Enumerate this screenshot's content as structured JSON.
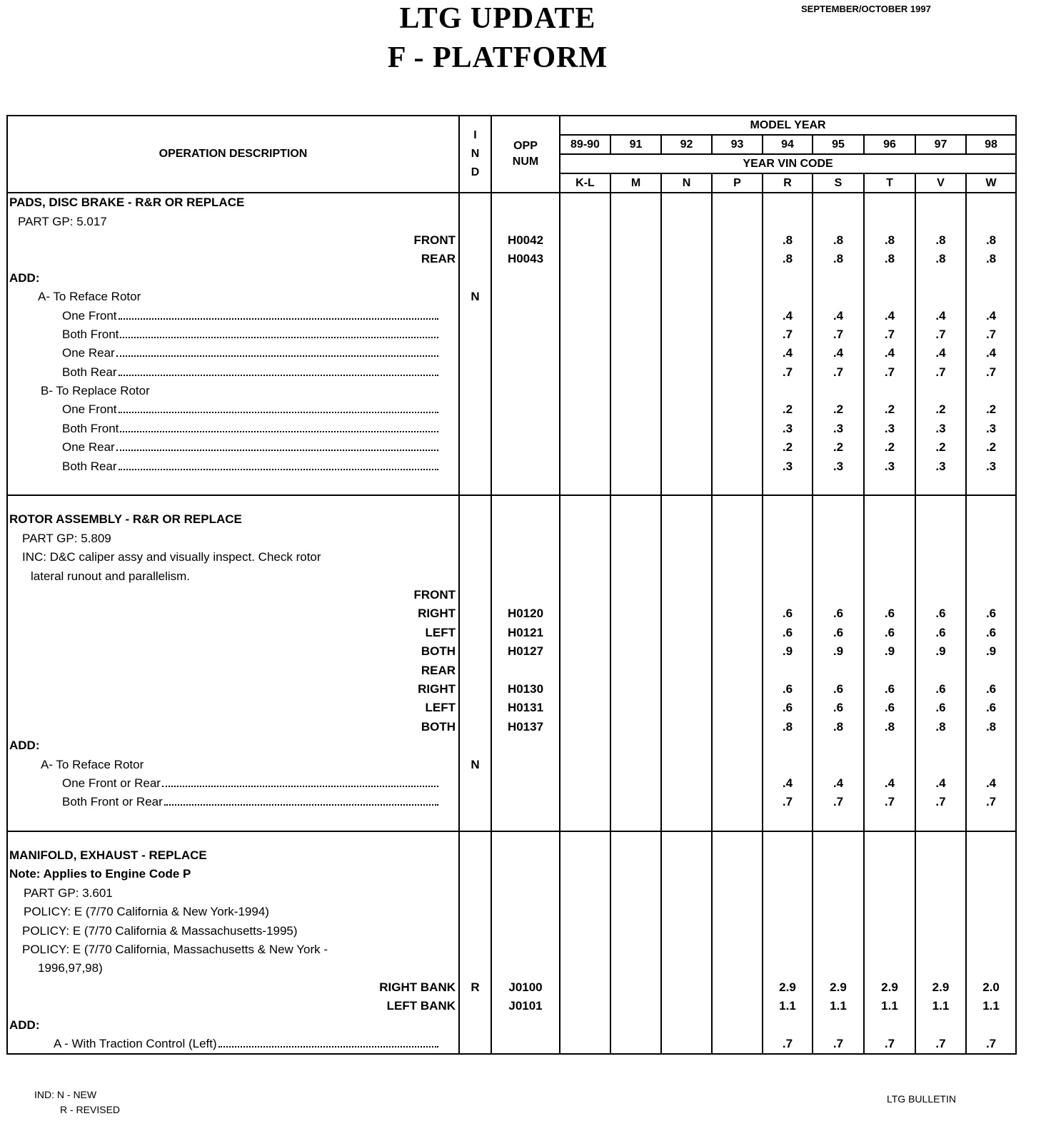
{
  "header": {
    "title_line1": "LTG UPDATE",
    "title_line2": "F - PLATFORM",
    "date": "SEPTEMBER/OCTOBER 1997"
  },
  "table": {
    "col_desc": "OPERATION  DESCRIPTION",
    "col_ind": [
      "I",
      "N",
      "D"
    ],
    "col_opp": [
      "OPP",
      "NUM"
    ],
    "model_year_label": "MODEL  YEAR",
    "years": [
      "89-90",
      "91",
      "92",
      "93",
      "94",
      "95",
      "96",
      "97",
      "98"
    ],
    "vin_label": "YEAR  VIN  CODE",
    "vin_codes": [
      "K-L",
      "M",
      "N",
      "P",
      "R",
      "S",
      "T",
      "V",
      "W"
    ]
  },
  "sections": [
    {
      "rows": [
        {
          "text": "PADS, DISC BRAKE - R&R OR REPLACE",
          "style": "bold",
          "indent": 0
        },
        {
          "text": "PART GP: 5.017",
          "indent": 12
        },
        {
          "text": "FRONT",
          "style": "right",
          "opp": "H0042",
          "values": [
            "",
            "",
            "",
            "",
            ".8",
            ".8",
            ".8",
            ".8",
            ".8"
          ]
        },
        {
          "text": "REAR",
          "style": "right",
          "opp": "H0043",
          "values": [
            "",
            "",
            "",
            "",
            ".8",
            ".8",
            ".8",
            ".8",
            ".8"
          ]
        },
        {
          "text": "ADD:",
          "style": "bold",
          "indent": 0
        },
        {
          "text": "A- To Reface Rotor",
          "indent": 40,
          "ind": "N"
        },
        {
          "text": "One Front",
          "indent": 74,
          "leader": true,
          "values": [
            "",
            "",
            "",
            "",
            ".4",
            ".4",
            ".4",
            ".4",
            ".4"
          ]
        },
        {
          "text": "Both Front",
          "indent": 74,
          "leader": true,
          "values": [
            "",
            "",
            "",
            "",
            ".7",
            ".7",
            ".7",
            ".7",
            ".7"
          ]
        },
        {
          "text": "One Rear",
          "indent": 74,
          "leader": true,
          "values": [
            "",
            "",
            "",
            "",
            ".4",
            ".4",
            ".4",
            ".4",
            ".4"
          ]
        },
        {
          "text": "Both Rear",
          "indent": 74,
          "leader": true,
          "values": [
            "",
            "",
            "",
            "",
            ".7",
            ".7",
            ".7",
            ".7",
            ".7"
          ]
        },
        {
          "text": "B- To Replace Rotor",
          "indent": 44
        },
        {
          "text": "One Front",
          "indent": 74,
          "leader": true,
          "values": [
            "",
            "",
            "",
            "",
            ".2",
            ".2",
            ".2",
            ".2",
            ".2"
          ]
        },
        {
          "text": "Both Front",
          "indent": 74,
          "leader": true,
          "values": [
            "",
            "",
            "",
            "",
            ".3",
            ".3",
            ".3",
            ".3",
            ".3"
          ]
        },
        {
          "text": "One Rear",
          "indent": 74,
          "leader": true,
          "values": [
            "",
            "",
            "",
            "",
            ".2",
            ".2",
            ".2",
            ".2",
            ".2"
          ]
        },
        {
          "text": "Both Rear",
          "indent": 74,
          "leader": true,
          "values": [
            "",
            "",
            "",
            "",
            ".3",
            ".3",
            ".3",
            ".3",
            ".3"
          ]
        },
        {
          "text": ""
        }
      ]
    },
    {
      "rows": [
        {
          "text": "ROTOR ASSEMBLY - R&R OR REPLACE",
          "style": "bold",
          "indent": 0
        },
        {
          "text": "PART GP: 5.809",
          "indent": 18
        },
        {
          "text": "INC: D&C caliper assy and visually inspect. Check rotor",
          "indent": 18
        },
        {
          "text": "lateral runout and parallelism.",
          "indent": 30
        },
        {
          "text": "FRONT",
          "style": "right"
        },
        {
          "text": "RIGHT",
          "style": "right",
          "opp": "H0120",
          "values": [
            "",
            "",
            "",
            "",
            ".6",
            ".6",
            ".6",
            ".6",
            ".6"
          ]
        },
        {
          "text": "LEFT",
          "style": "right",
          "opp": "H0121",
          "values": [
            "",
            "",
            "",
            "",
            ".6",
            ".6",
            ".6",
            ".6",
            ".6"
          ]
        },
        {
          "text": "BOTH",
          "style": "right",
          "opp": "H0127",
          "values": [
            "",
            "",
            "",
            "",
            ".9",
            ".9",
            ".9",
            ".9",
            ".9"
          ]
        },
        {
          "text": "REAR",
          "style": "right"
        },
        {
          "text": "RIGHT",
          "style": "right",
          "opp": "H0130",
          "values": [
            "",
            "",
            "",
            "",
            ".6",
            ".6",
            ".6",
            ".6",
            ".6"
          ]
        },
        {
          "text": "LEFT",
          "style": "right",
          "opp": "H0131",
          "values": [
            "",
            "",
            "",
            "",
            ".6",
            ".6",
            ".6",
            ".6",
            ".6"
          ]
        },
        {
          "text": "BOTH",
          "style": "right",
          "opp": "H0137",
          "values": [
            "",
            "",
            "",
            "",
            ".8",
            ".8",
            ".8",
            ".8",
            ".8"
          ]
        },
        {
          "text": "ADD:",
          "style": "bold",
          "indent": 0
        },
        {
          "text": "A- To Reface Rotor",
          "indent": 44,
          "ind": "N"
        },
        {
          "text": "One Front or Rear",
          "indent": 74,
          "leader": true,
          "values": [
            "",
            "",
            "",
            "",
            ".4",
            ".4",
            ".4",
            ".4",
            ".4"
          ]
        },
        {
          "text": "Both Front or Rear",
          "indent": 74,
          "leader": true,
          "values": [
            "",
            "",
            "",
            "",
            ".7",
            ".7",
            ".7",
            ".7",
            ".7"
          ]
        },
        {
          "text": ""
        }
      ]
    },
    {
      "rows": [
        {
          "text": "MANIFOLD, EXHAUST - REPLACE",
          "style": "bold",
          "indent": 0
        },
        {
          "text": "Note:  Applies to Engine Code P",
          "style": "bold",
          "indent": 0
        },
        {
          "text": "PART GP: 3.601",
          "indent": 20
        },
        {
          "text": "POLICY: E (7/70 California & New York-1994)",
          "indent": 20
        },
        {
          "text": "POLICY: E (7/70 California & Massachusetts-1995)",
          "indent": 18
        },
        {
          "text": "POLICY: E (7/70 California, Massachusetts & New York -",
          "indent": 18
        },
        {
          "text": "1996,97,98)",
          "indent": 40
        },
        {
          "text": "RIGHT BANK",
          "style": "right",
          "ind": "R",
          "opp": "J0100",
          "values": [
            "",
            "",
            "",
            "",
            "2.9",
            "2.9",
            "2.9",
            "2.9",
            "2.0"
          ]
        },
        {
          "text": "LEFT BANK",
          "style": "right",
          "opp": "J0101",
          "values": [
            "",
            "",
            "",
            "",
            "1.1",
            "1.1",
            "1.1",
            "1.1",
            "1.1"
          ]
        },
        {
          "text": "ADD:",
          "style": "bold",
          "indent": 0
        },
        {
          "text": "A - With Traction Control (Left)",
          "indent": 62,
          "leader": true,
          "values": [
            "",
            "",
            "",
            "",
            ".7",
            ".7",
            ".7",
            ".7",
            ".7"
          ]
        }
      ]
    }
  ],
  "footer": {
    "legend_line1": "IND: N - NEW",
    "legend_line2": "R - REVISED",
    "bulletin": "LTG BULLETIN"
  }
}
